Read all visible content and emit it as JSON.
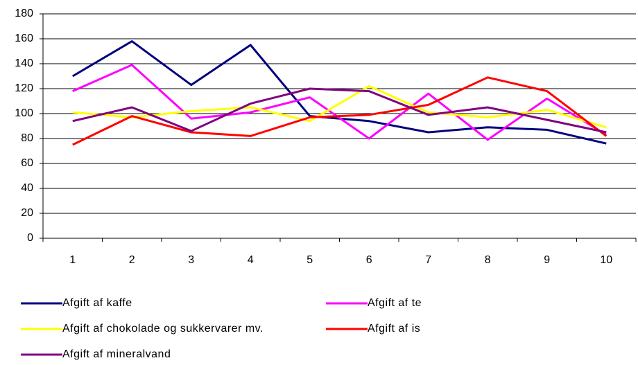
{
  "chart_data": {
    "type": "line",
    "categories": [
      "1",
      "2",
      "3",
      "4",
      "5",
      "6",
      "7",
      "8",
      "9",
      "10"
    ],
    "series": [
      {
        "name": "Afgift af kaffe",
        "color": "#000080",
        "values": [
          130,
          158,
          123,
          155,
          98,
          94,
          85,
          89,
          87,
          76
        ]
      },
      {
        "name": "Afgift af te",
        "color": "#ff00ff",
        "values": [
          118,
          139,
          96,
          101,
          113,
          80,
          116,
          79,
          112,
          83
        ]
      },
      {
        "name": "Afgift af chokolade og sukkervarer mv.",
        "color": "#ffff00",
        "values": [
          101,
          97,
          102,
          105,
          94,
          122,
          101,
          97,
          103,
          89
        ]
      },
      {
        "name": "Afgift af is",
        "color": "#ff0000",
        "values": [
          75,
          98,
          85,
          82,
          97,
          99,
          107,
          129,
          118,
          82
        ]
      },
      {
        "name": "Afgift af mineralvand",
        "color": "#800080",
        "values": [
          94,
          105,
          86,
          108,
          120,
          118,
          99,
          105,
          95,
          85
        ]
      }
    ],
    "ylim": [
      0,
      180
    ],
    "yticks": [
      0,
      20,
      40,
      60,
      80,
      100,
      120,
      140,
      160,
      180
    ],
    "grid": true,
    "legend": "bottom"
  }
}
